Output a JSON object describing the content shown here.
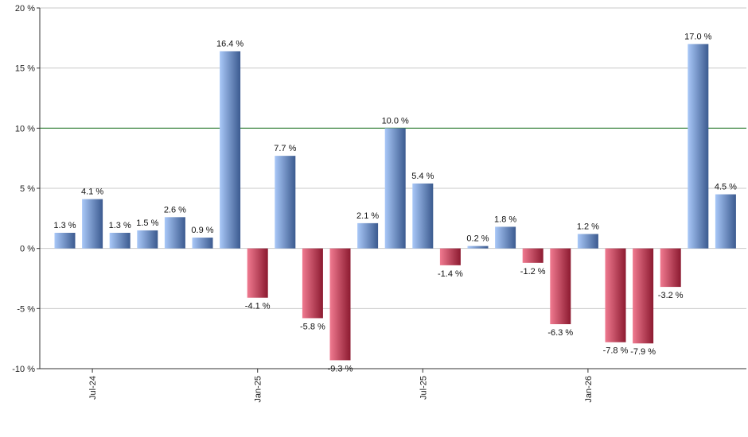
{
  "chart_data": {
    "type": "bar",
    "title": "",
    "xlabel": "",
    "ylabel": "",
    "ylim": [
      -10,
      20
    ],
    "y_ticks": [
      -10,
      -5,
      0,
      5,
      10,
      15,
      20
    ],
    "y_tick_labels": [
      "-10 %",
      "-5 %",
      "0 %",
      "5 %",
      "10 %",
      "15 %",
      "20 %"
    ],
    "grid": true,
    "reference_line": {
      "value": 10,
      "color": "#2e7d32"
    },
    "x_ticks": [
      {
        "index": 1,
        "label": "Jul-24"
      },
      {
        "index": 7,
        "label": "Jan-25"
      },
      {
        "index": 13,
        "label": "Jul-25"
      },
      {
        "index": 19,
        "label": "Jan-26"
      }
    ],
    "values": [
      1.3,
      4.1,
      1.3,
      1.5,
      2.6,
      0.9,
      16.4,
      -4.1,
      7.7,
      -5.8,
      -9.3,
      2.1,
      10.0,
      5.4,
      -1.4,
      0.2,
      1.8,
      -1.2,
      -6.3,
      1.2,
      -7.8,
      -7.9,
      -3.2,
      17.0,
      4.5
    ],
    "value_labels": [
      "1.3 %",
      "4.1 %",
      "1.3 %",
      "1.5 %",
      "2.6 %",
      "0.9 %",
      "16.4 %",
      "-4.1 %",
      "7.7 %",
      "-5.8 %",
      "-9.3 %",
      "2.1 %",
      "10.0 %",
      "5.4 %",
      "-1.4 %",
      "0.2 %",
      "1.8 %",
      "-1.2 %",
      "-6.3 %",
      "1.2 %",
      "-7.8 %",
      "-7.9 %",
      "-3.2 %",
      "17.0 %",
      "4.5 %"
    ],
    "colors": {
      "positive_light": "#a9c8f8",
      "positive_dark": "#3b5a8f",
      "negative_light": "#f07a90",
      "negative_dark": "#8c1a30",
      "grid": "#c8c8c8",
      "axis": "#333333"
    }
  }
}
